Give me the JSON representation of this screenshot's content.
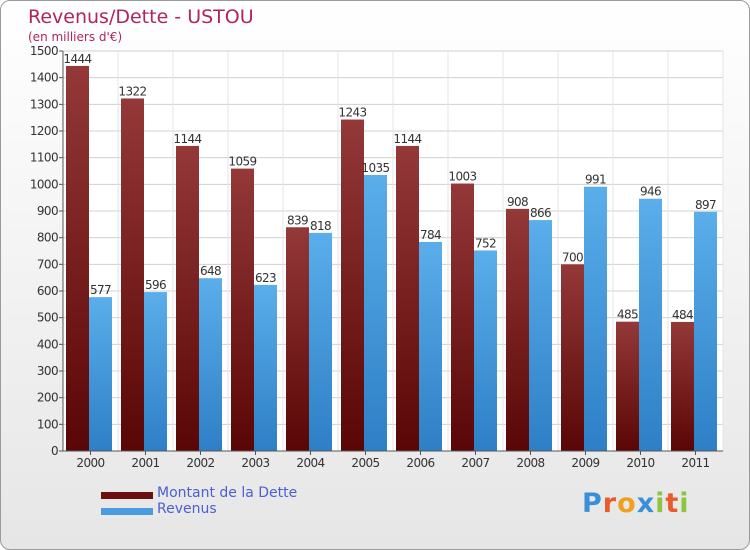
{
  "header": {
    "title": "Revenus/Dette - USTOU",
    "subtitle": "(en milliers d'€)"
  },
  "colors": {
    "debt": "#7a1f1f",
    "revenue": "#4a9be0"
  },
  "chart_data": {
    "type": "bar",
    "categories": [
      "2000",
      "2001",
      "2002",
      "2003",
      "2004",
      "2005",
      "2006",
      "2007",
      "2008",
      "2009",
      "2010",
      "2011"
    ],
    "series": [
      {
        "name": "Montant de la Dette",
        "values": [
          1444,
          1322,
          1144,
          1059,
          839,
          1243,
          1144,
          1003,
          908,
          700,
          485,
          484
        ]
      },
      {
        "name": "Revenus",
        "values": [
          577,
          596,
          648,
          623,
          818,
          1035,
          784,
          752,
          866,
          991,
          946,
          897
        ]
      }
    ],
    "ylim": [
      0,
      1500
    ],
    "yticks": [
      0,
      100,
      200,
      300,
      400,
      500,
      600,
      700,
      800,
      900,
      1000,
      1100,
      1200,
      1300,
      1400,
      1500
    ],
    "grid": true,
    "legend_position": "bottom-left"
  },
  "legend": {
    "debt_label": "Montant de la Dette",
    "revenue_label": "Revenus"
  },
  "logo": {
    "letters": [
      "P",
      "r",
      "o",
      "x",
      "i",
      "t",
      "i"
    ],
    "colors": [
      "#3a8fd8",
      "#e85c2a",
      "#f0a020",
      "#3a8fd8",
      "#8cc63f",
      "#e85c2a",
      "#8cc63f"
    ]
  }
}
